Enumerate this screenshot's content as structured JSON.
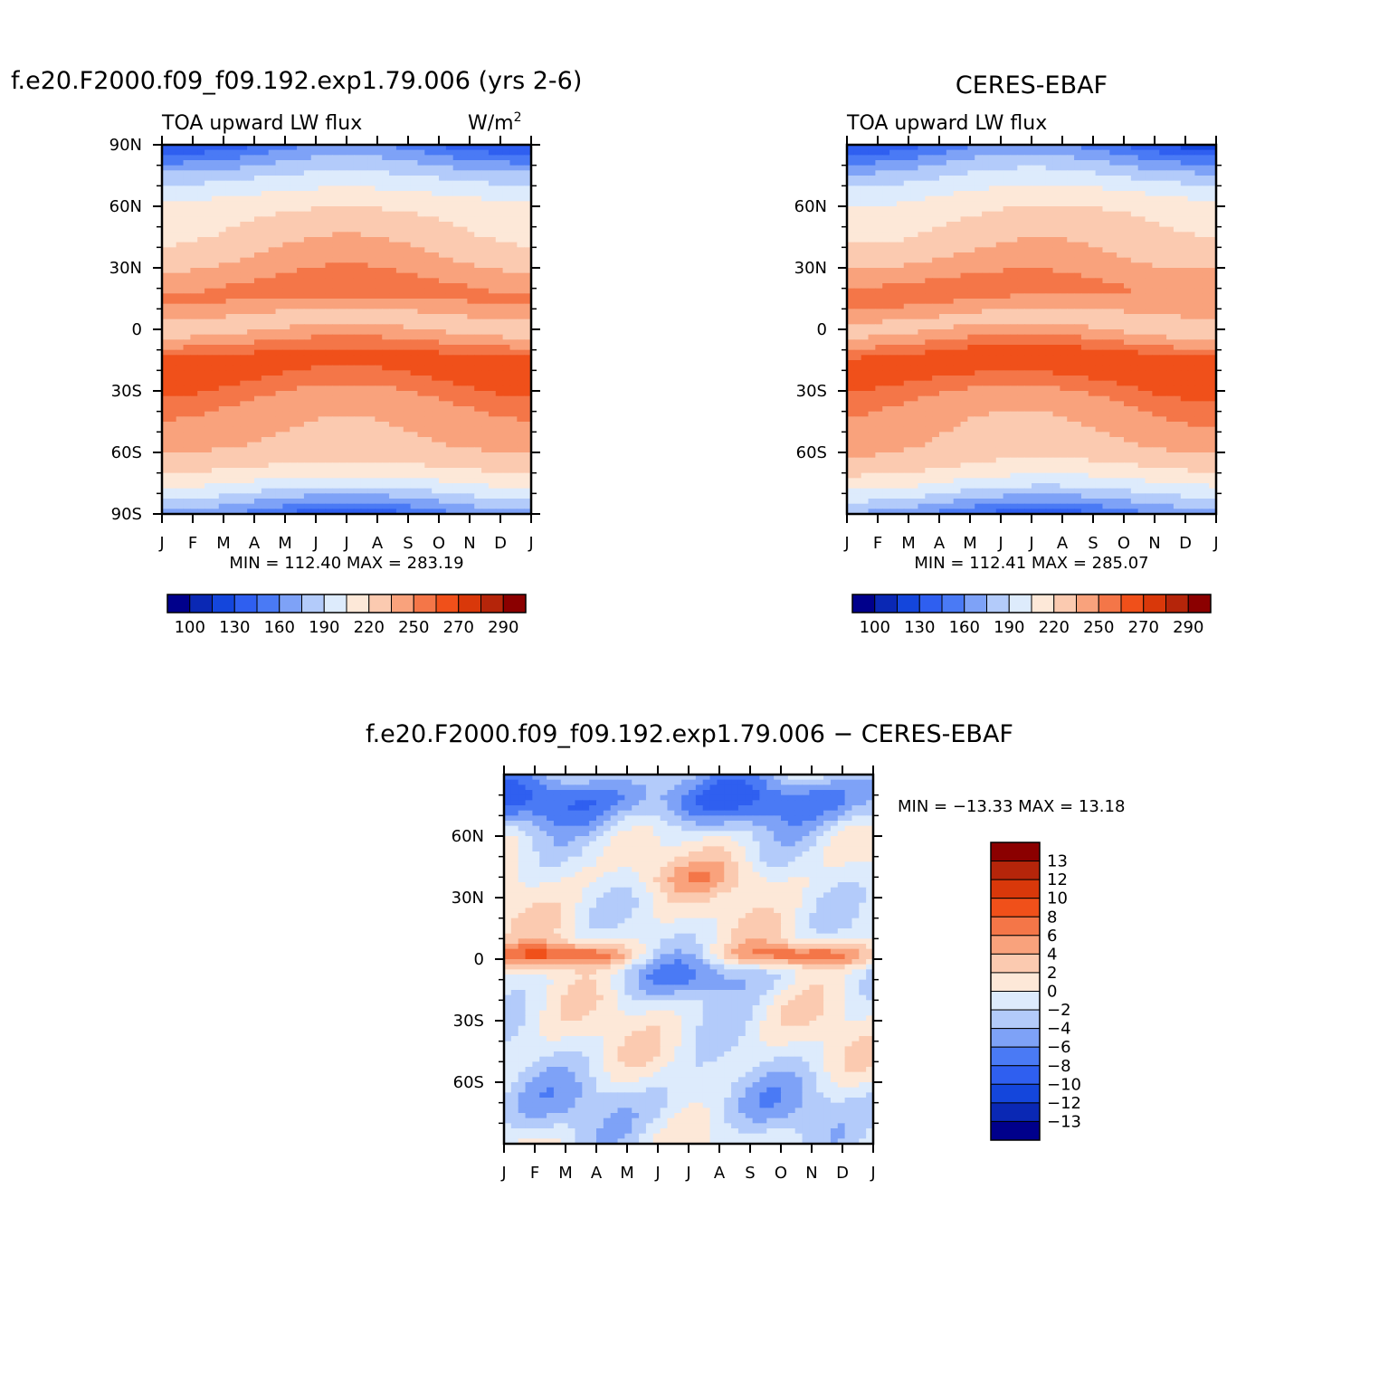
{
  "chart_data": [
    {
      "type": "heatmap",
      "panel": "model",
      "title": "f.e20.F2000.f09_f09.192.exp1.79.006 (yrs 2-6)",
      "subtitle_left": "TOA upward LW flux",
      "units": "W/m",
      "units_sup": "2",
      "min_max": "MIN = 112.40 MAX = 283.19",
      "min": 112.4,
      "max": 283.19,
      "xlabel_ticks": [
        "J",
        "F",
        "M",
        "A",
        "M",
        "J",
        "J",
        "A",
        "S",
        "O",
        "N",
        "D",
        "J"
      ],
      "ylabel_ticks": [
        "90N",
        "60N",
        "30N",
        "0",
        "30S",
        "60S",
        "90S"
      ],
      "ylim": [
        -90,
        90
      ],
      "colorbar_labels": [
        "100",
        "130",
        "160",
        "190",
        "220",
        "250",
        "270",
        "290"
      ],
      "levels": [
        100,
        115,
        130,
        145,
        160,
        175,
        190,
        205,
        220,
        235,
        250,
        260,
        270,
        280,
        290
      ]
    },
    {
      "type": "heatmap",
      "panel": "obs",
      "title": "CERES-EBAF",
      "subtitle_left": "TOA upward LW flux",
      "min_max": "MIN = 112.41 MAX = 285.07",
      "min": 112.41,
      "max": 285.07,
      "xlabel_ticks": [
        "J",
        "F",
        "M",
        "A",
        "M",
        "J",
        "J",
        "A",
        "S",
        "O",
        "N",
        "D",
        "J"
      ],
      "ylabel_ticks": [
        "60N",
        "30N",
        "0",
        "30S",
        "60S"
      ],
      "ylim": [
        -90,
        90
      ],
      "colorbar_labels": [
        "100",
        "130",
        "160",
        "190",
        "220",
        "250",
        "270",
        "290"
      ],
      "levels": [
        100,
        115,
        130,
        145,
        160,
        175,
        190,
        205,
        220,
        235,
        250,
        260,
        270,
        280,
        290
      ]
    },
    {
      "type": "heatmap",
      "panel": "diff",
      "title": "f.e20.F2000.f09_f09.192.exp1.79.006 − CERES-EBAF",
      "min_max": "MIN = −13.33 MAX =   13.18",
      "min": -13.33,
      "max": 13.18,
      "xlabel_ticks": [
        "J",
        "F",
        "M",
        "A",
        "M",
        "J",
        "J",
        "A",
        "S",
        "O",
        "N",
        "D",
        "J"
      ],
      "ylabel_ticks": [
        "60N",
        "30N",
        "0",
        "30S",
        "60S"
      ],
      "ylim": [
        -90,
        90
      ],
      "colorbar_labels": [
        "13",
        "12",
        "10",
        "8",
        "6",
        "4",
        "2",
        "0",
        "−2",
        "−4",
        "−6",
        "−8",
        "−10",
        "−12",
        "−13"
      ],
      "levels": [
        -13,
        -12,
        -10,
        -8,
        -6,
        -4,
        -2,
        0,
        2,
        4,
        6,
        8,
        10,
        12,
        13
      ]
    }
  ],
  "colors": {
    "palette": [
      "#00008b",
      "#0a28b4",
      "#1446dc",
      "#2f5ff0",
      "#4a7af5",
      "#7ea2f7",
      "#b3cbfa",
      "#ddebfc",
      "#fde8d8",
      "#fbcab0",
      "#f9a27c",
      "#f47648",
      "#f0501a",
      "#d9380a",
      "#b5250a",
      "#8b0000"
    ]
  }
}
